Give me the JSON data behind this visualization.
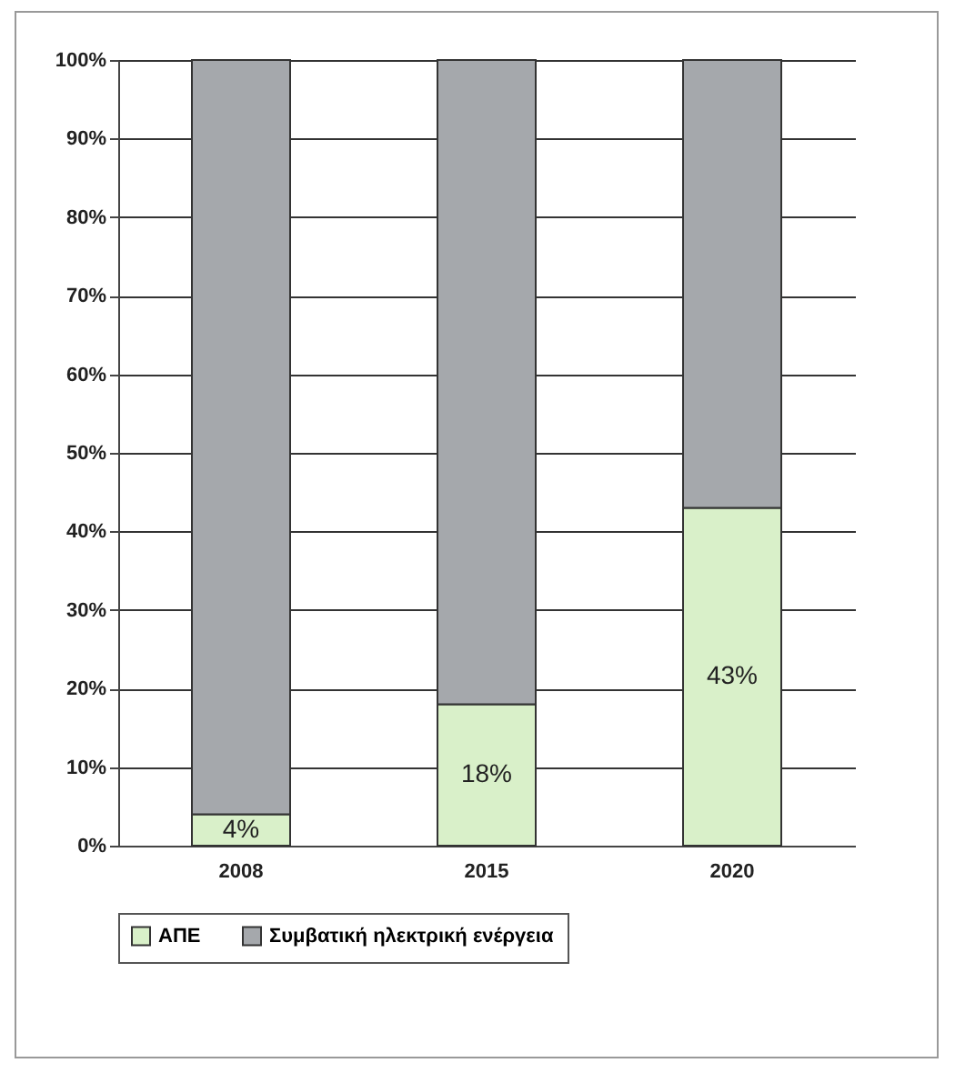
{
  "chart_data": {
    "type": "bar",
    "stacked": true,
    "categories": [
      "2008",
      "2015",
      "2020"
    ],
    "series": [
      {
        "name": "ΑΠΕ",
        "color": "#d9f0c9",
        "values": [
          4,
          18,
          43
        ],
        "value_labels": [
          "4%",
          "18%",
          "43%"
        ]
      },
      {
        "name": "Συμβατική ηλεκτρική ενέργεια",
        "color": "#a5a8ac",
        "values": [
          96,
          82,
          57
        ]
      }
    ],
    "ylim": [
      0,
      100
    ],
    "yticks": [
      {
        "value": 0,
        "label": "0%"
      },
      {
        "value": 10,
        "label": "10%"
      },
      {
        "value": 20,
        "label": "20%"
      },
      {
        "value": 30,
        "label": "30%"
      },
      {
        "value": 40,
        "label": "40%"
      },
      {
        "value": 50,
        "label": "50%"
      },
      {
        "value": 60,
        "label": "60%"
      },
      {
        "value": 70,
        "label": "70%"
      },
      {
        "value": 80,
        "label": "80%"
      },
      {
        "value": 90,
        "label": "90%"
      },
      {
        "value": 100,
        "label": "100%"
      }
    ],
    "grid": "y",
    "legend": "bottom"
  }
}
